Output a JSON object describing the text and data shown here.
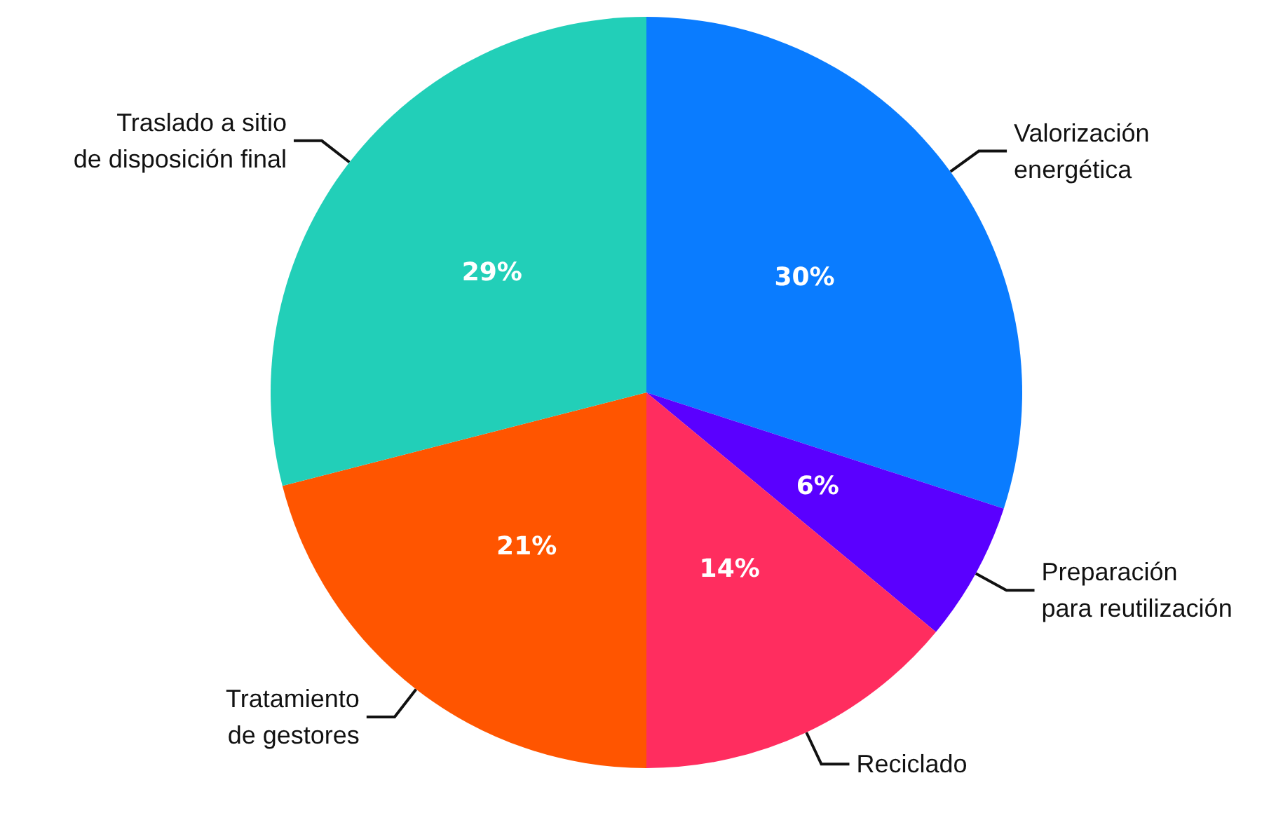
{
  "chart_data": {
    "type": "pie",
    "categories": [
      "Valorización\nenergética",
      "Preparación\npara reutilización",
      "Reciclado",
      "Tratamiento\nde gestores",
      "Traslado a sitio\nde disposición final"
    ],
    "values": [
      30,
      6,
      14,
      21,
      29
    ],
    "colors": [
      "#0a7cff",
      "#5a00ff",
      "#ff2d5f",
      "#ff5500",
      "#22cfb8"
    ],
    "value_labels": [
      "30%",
      "6%",
      "14%",
      "21%",
      "29%"
    ]
  }
}
